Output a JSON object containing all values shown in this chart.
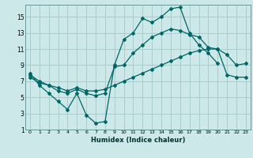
{
  "xlabel": "Humidex (Indice chaleur)",
  "bg_color": "#cce8e8",
  "grid_color": "#aacccc",
  "line_color": "#006666",
  "xlim": [
    -0.5,
    23.5
  ],
  "ylim": [
    1,
    16.5
  ],
  "xticks": [
    0,
    1,
    2,
    3,
    4,
    5,
    6,
    7,
    8,
    9,
    10,
    11,
    12,
    13,
    14,
    15,
    16,
    17,
    18,
    19,
    20,
    21,
    22,
    23
  ],
  "yticks": [
    1,
    3,
    5,
    7,
    9,
    11,
    13,
    15
  ],
  "line1_x": [
    0,
    1,
    2,
    3,
    4,
    5,
    6,
    7,
    8,
    9,
    10,
    11,
    12,
    13,
    14,
    15,
    16,
    17,
    18,
    19,
    20
  ],
  "line1_y": [
    8.0,
    6.5,
    5.5,
    4.5,
    3.5,
    5.5,
    2.8,
    1.8,
    2.0,
    9.0,
    12.2,
    13.0,
    14.8,
    14.3,
    15.0,
    16.0,
    16.2,
    13.0,
    11.5,
    10.5,
    9.2
  ],
  "line2_x": [
    0,
    1,
    2,
    3,
    4,
    5,
    6,
    7,
    8,
    9,
    10,
    11,
    12,
    13,
    14,
    15,
    16,
    17,
    18,
    19,
    20,
    21,
    22,
    23
  ],
  "line2_y": [
    7.8,
    7.0,
    6.5,
    5.8,
    5.5,
    6.0,
    5.5,
    5.2,
    5.5,
    8.8,
    9.0,
    10.5,
    11.5,
    12.5,
    13.0,
    13.5,
    13.3,
    12.8,
    12.5,
    11.2,
    11.0,
    10.3,
    9.0,
    9.2
  ],
  "line3_x": [
    0,
    1,
    2,
    3,
    4,
    5,
    6,
    7,
    8,
    9,
    10,
    11,
    12,
    13,
    14,
    15,
    16,
    17,
    18,
    19,
    20,
    21,
    22,
    23
  ],
  "line3_y": [
    7.5,
    6.8,
    6.5,
    6.2,
    5.8,
    6.2,
    5.8,
    5.8,
    6.0,
    6.5,
    7.0,
    7.5,
    8.0,
    8.5,
    9.0,
    9.5,
    10.0,
    10.5,
    10.8,
    11.0,
    11.0,
    7.8,
    7.5,
    7.5
  ]
}
